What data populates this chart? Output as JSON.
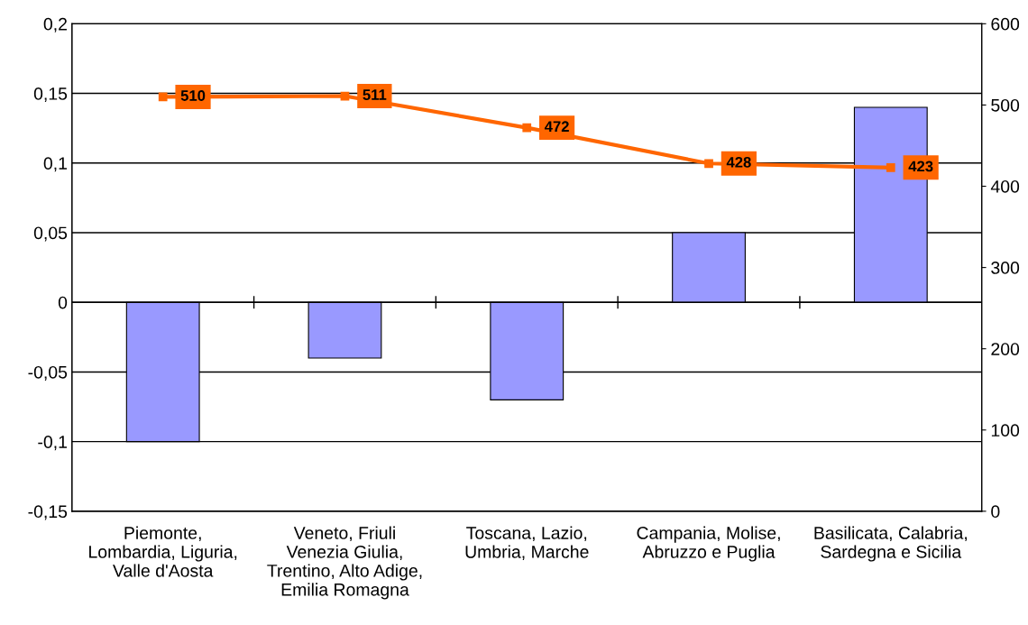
{
  "chart_data": {
    "type": "bar",
    "categories": [
      "Piemonte,\nLombardia, Liguria,\nValle d'Aosta",
      "Veneto, Friuli\nVenezia Giulia,\nTrentino, Alto Adige,\nEmilia Romagna",
      "Toscana, Lazio,\nUmbria, Marche",
      "Campania, Molise,\nAbruzzo e Puglia",
      "Basilicata, Calabria,\nSardegna e Sicilia"
    ],
    "series": [
      {
        "color": "#9999ff",
        "values": [
          -0.1,
          -0.04,
          -0.07,
          0.05,
          0.14
        ]
      },
      {
        "type": "line",
        "axis": "y2",
        "color": "#ff6600",
        "marker": "square",
        "data_labels": true,
        "values": [
          510,
          511,
          472,
          428,
          423
        ]
      }
    ],
    "ylim": [
      -0.15,
      0.2
    ],
    "yticks": [
      {
        "value": -0.15,
        "label": "-0,15"
      },
      {
        "value": -0.1,
        "label": "-0,1"
      },
      {
        "value": -0.05,
        "label": "-0,05"
      },
      0,
      {
        "value": 0.05,
        "label": "0,05"
      },
      {
        "value": 0.1,
        "label": "0,1"
      },
      {
        "value": 0.15,
        "label": "0,15"
      },
      {
        "value": 0.2,
        "label": "0,2"
      }
    ],
    "y2lim": [
      0,
      600
    ],
    "y2ticks": [
      0,
      100,
      200,
      300,
      400,
      500,
      600
    ],
    "grid": "y"
  }
}
